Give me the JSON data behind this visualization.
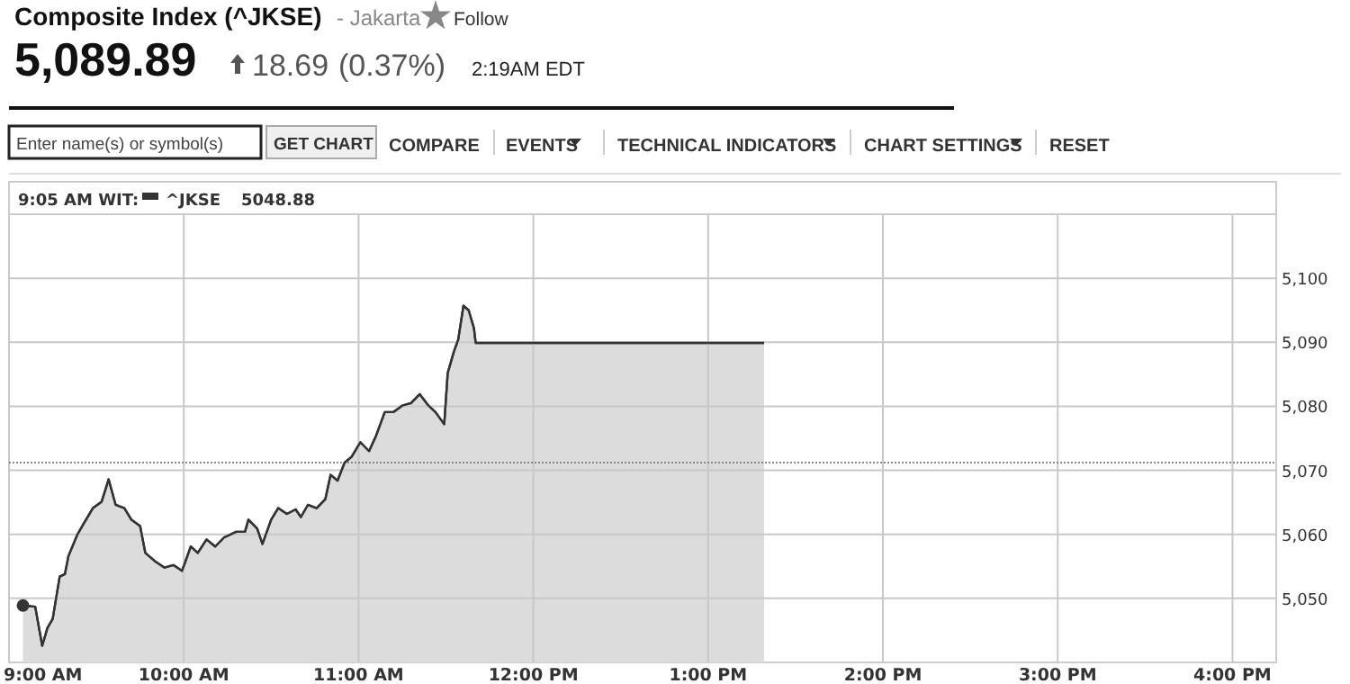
{
  "chart_data": {
    "type": "area",
    "title": "Composite Index (^JKSE)",
    "subtitle": "- Jakarta",
    "annotations": [
      "Follow",
      "5,089.89",
      "18.69",
      "(0.37%)",
      "2:19AM EDT",
      "Enter name(s) or symbol(s)",
      "GET CHART",
      "COMPARE",
      "EVENTS",
      "TECHNICAL INDICATORS",
      "CHART SETTINGS",
      "RESET",
      "9:05 AM WIT:",
      "5048.88"
    ],
    "series": [
      {
        "name": "^JKSE",
        "color": "#333333",
        "x": [
          9.08,
          9.15,
          9.19,
          9.22,
          9.25,
          9.29,
          9.32,
          9.34,
          9.39,
          9.43,
          9.48,
          9.53,
          9.57,
          9.61,
          9.66,
          9.7,
          9.75,
          9.78,
          9.84,
          9.89,
          9.94,
          9.99,
          10.04,
          10.08,
          10.13,
          10.18,
          10.23,
          10.3,
          10.35,
          10.37,
          10.42,
          10.45,
          10.5,
          10.54,
          10.59,
          10.64,
          10.67,
          10.71,
          10.76,
          10.81,
          10.84,
          10.88,
          10.92,
          10.96,
          11.01,
          11.06,
          11.1,
          11.15,
          11.2,
          11.25,
          11.3,
          11.35,
          11.4,
          11.44,
          11.49,
          11.51,
          11.545,
          11.57,
          11.6,
          11.63,
          11.66,
          11.67,
          13.32
        ],
        "values": [
          5048.9,
          5048.7,
          5042.6,
          5045.4,
          5046.8,
          5053.4,
          5053.8,
          5056.6,
          5059.9,
          5061.8,
          5064.1,
          5065.1,
          5068.6,
          5064.6,
          5064.1,
          5062.3,
          5061.3,
          5057.1,
          5055.7,
          5054.8,
          5055.2,
          5054.3,
          5058.1,
          5057.1,
          5059.2,
          5058.1,
          5059.5,
          5060.4,
          5060.4,
          5062.3,
          5060.9,
          5058.5,
          5062.3,
          5064.1,
          5063.2,
          5063.9,
          5062.7,
          5064.6,
          5064.1,
          5065.5,
          5069.3,
          5068.4,
          5071.2,
          5072.1,
          5074.4,
          5073.0,
          5075.4,
          5079.1,
          5079.1,
          5080.1,
          5080.5,
          5081.9,
          5080.1,
          5079.1,
          5077.2,
          5085.2,
          5088.5,
          5090.4,
          5095.7,
          5095.0,
          5092.2,
          5089.9,
          5089.9
        ]
      },
      {
        "type": "scatter",
        "color": "#333333",
        "x": [
          9.08
        ],
        "values": [
          5048.88
        ]
      }
    ],
    "xlim": [
      9,
      16.25
    ],
    "ylim": [
      5040,
      5110
    ],
    "xticks": [
      {
        "value": 9,
        "label": "9:00 AM"
      },
      {
        "value": 10,
        "label": "10:00 AM"
      },
      {
        "value": 11,
        "label": "11:00 AM"
      },
      {
        "value": 12,
        "label": "12:00 PM"
      },
      {
        "value": 13,
        "label": "1:00 PM"
      },
      {
        "value": 14,
        "label": "2:00 PM"
      },
      {
        "value": 15,
        "label": "3:00 PM"
      },
      {
        "value": 16,
        "label": "4:00 PM"
      }
    ],
    "yticks": [
      {
        "value": 5050,
        "label": "5,050"
      },
      {
        "value": 5060,
        "label": "5,060"
      },
      {
        "value": 5070,
        "label": "5,070"
      },
      {
        "value": 5080,
        "label": "5,080"
      },
      {
        "value": 5090,
        "label": "5,090"
      },
      {
        "value": 5100,
        "label": "5,100"
      }
    ],
    "ref_lines": [
      {
        "axis": "y",
        "value": 5071.2,
        "color": "#888888",
        "line_style": "dotted"
      }
    ],
    "grid": true,
    "legend": "top left"
  }
}
